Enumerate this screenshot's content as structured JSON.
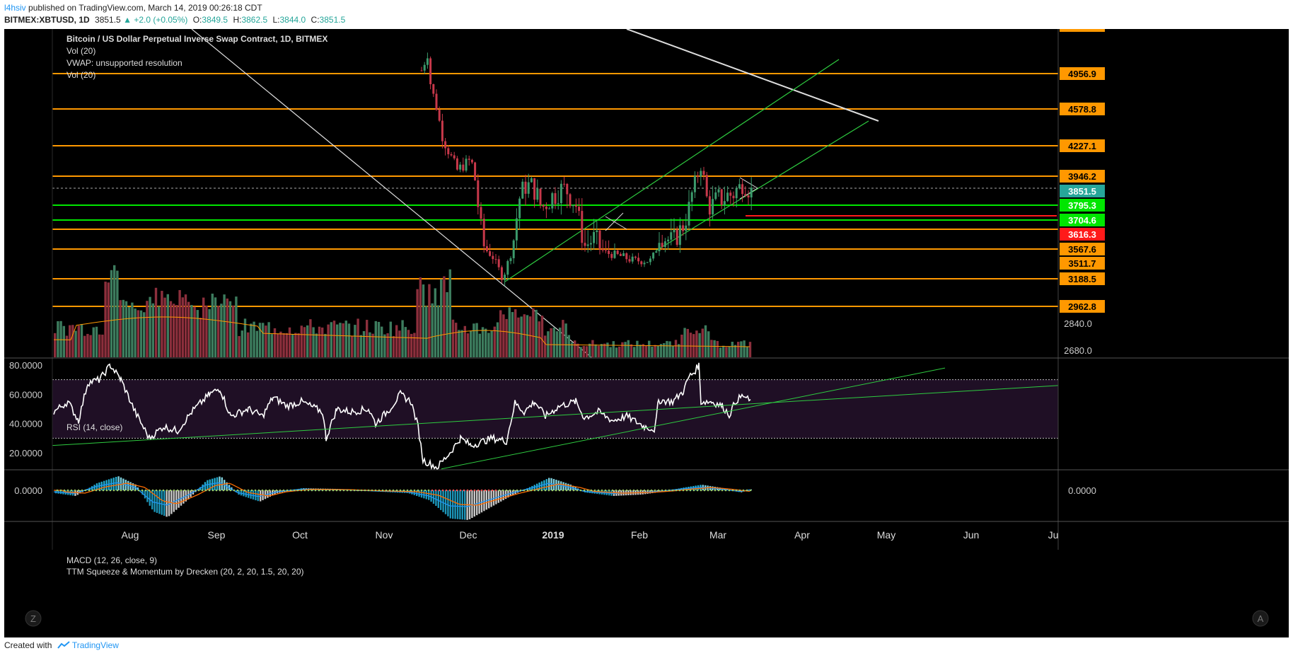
{
  "header": {
    "user": "l4hsiv",
    "published": "published on TradingView.com, March 14, 2019 00:26:18 CDT",
    "symbol": "BITMEX:XBTUSD, 1D",
    "last": "3851.5",
    "arrow": "▲",
    "change": "+2.0 (+0.05%)",
    "o_label": "O:",
    "o": "3849.5",
    "h_label": "H:",
    "h": "3862.5",
    "l_label": "L:",
    "l": "3844.0",
    "c_label": "C:",
    "c": "3851.5"
  },
  "legend": {
    "title": "Bitcoin / US Dollar Perpetual Inverse Swap Contract, 1D, BITMEX",
    "ind1": "Vol (20)",
    "ind2": "VWAP: unsupported resolution",
    "ind3": "Vol (20)",
    "rsi": "RSI (14, close)",
    "macd": "MACD (12, 26, close, 9)",
    "ttm": "TTM Squeeze & Momentum by Drecken (20, 2, 20, 1.5, 20, 20)"
  },
  "footer": {
    "created": "Created with",
    "brand": "TradingView"
  },
  "buttons": {
    "left": "Z",
    "right": "A"
  },
  "chart_data": {
    "type": "candlestick",
    "symbol": "BITMEX:XBTUSD",
    "interval": "1D",
    "x_axis_labels": [
      "Aug",
      "Sep",
      "Oct",
      "Nov",
      "Dec",
      "2019",
      "Feb",
      "Mar",
      "Apr",
      "May",
      "Jun",
      "Ju"
    ],
    "price_axis": {
      "labels": [
        "2840.0",
        "2680.0"
      ],
      "levels": [
        {
          "price": 4956.9,
          "label": "4956.9",
          "color": "#ff9800"
        },
        {
          "price": 4578.8,
          "label": "4578.8",
          "color": "#ff9800"
        },
        {
          "price": 4227.1,
          "label": "4227.1",
          "color": "#ff9800"
        },
        {
          "price": 3946.2,
          "label": "3946.2",
          "color": "#ff9800"
        },
        {
          "price": 3851.5,
          "label": "3851.5",
          "color": "#26a69a"
        },
        {
          "price": 3795.3,
          "label": "3795.3",
          "color": "#00e600"
        },
        {
          "price": 3704.6,
          "label": "3704.6",
          "color": "#00e600"
        },
        {
          "price": 3616.3,
          "label": "3616.3",
          "color": "#ff1a1a"
        },
        {
          "price": 3567.6,
          "label": "3567.6",
          "color": "#ff9800"
        },
        {
          "price": 3511.7,
          "label": "3511.7",
          "color": "#ff9800"
        },
        {
          "price": 3188.5,
          "label": "3188.5",
          "color": "#ff9800"
        },
        {
          "price": 2962.8,
          "label": "2962.8",
          "color": "#ff9800"
        }
      ]
    },
    "rsi_axis_labels": [
      "80.0000",
      "60.0000",
      "40.0000",
      "20.0000"
    ],
    "rsi_band": [
      30,
      70
    ],
    "macd_axis_labels": [
      "0.0000"
    ],
    "macd_right_label": "0.0000",
    "colors": {
      "up": "#3c9a6c",
      "down": "#c7384a",
      "background": "#000000",
      "rsi_band": "#1f0f25",
      "rsi_line": "#ffffff",
      "level": "#ff9800",
      "trend": "#2ecc40"
    }
  }
}
